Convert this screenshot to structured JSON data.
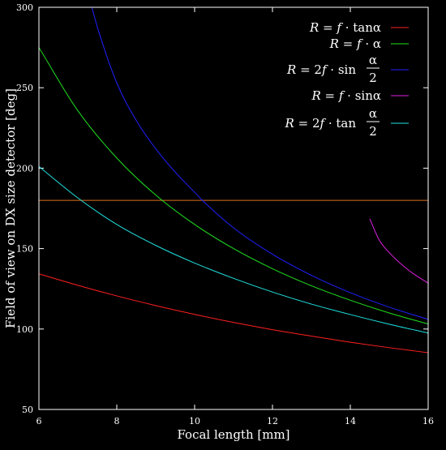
{
  "chart_data": {
    "type": "line",
    "title": "",
    "xlabel": "Focal length [mm]",
    "ylabel": "Field of view on DX size detector [deg]",
    "xlim": [
      6,
      16
    ],
    "ylim": [
      50,
      300
    ],
    "xticks": [
      6,
      8,
      10,
      12,
      14,
      16
    ],
    "yticks": [
      50,
      100,
      150,
      200,
      250,
      300
    ],
    "xtick_labels": [
      "6",
      "8",
      "10",
      "12",
      "14",
      "16"
    ],
    "ytick_labels": [
      "50",
      "100",
      "150",
      "200",
      "250",
      "300"
    ],
    "grid": false,
    "legend_position": "top-right",
    "reference_line": {
      "y": 180,
      "color": "#e07020"
    },
    "series": [
      {
        "name": "R = f · tanα",
        "color": "#ff2020",
        "x": [
          6,
          7,
          8,
          9,
          10,
          11,
          12,
          13,
          14,
          15,
          16
        ],
        "y": [
          134.3,
          127.2,
          120.6,
          114.6,
          109.1,
          104.1,
          99.6,
          95.6,
          91.8,
          88.4,
          85.3
        ]
      },
      {
        "name": "R = f · α",
        "color": "#20e020",
        "x": [
          6,
          7,
          8,
          9,
          10,
          11,
          12,
          13,
          14,
          15,
          16
        ],
        "y": [
          275.0,
          235.7,
          206.3,
          183.3,
          165.0,
          150.0,
          137.5,
          126.9,
          117.9,
          110.0,
          103.1
        ]
      },
      {
        "name": "R = 2f · sin(α/2)",
        "color": "#2020ff",
        "x": [
          7.36,
          7.5,
          8,
          8.5,
          9,
          9.5,
          10,
          10.2,
          11,
          12,
          13,
          14,
          15,
          16
        ],
        "y": [
          300.0,
          287.8,
          253.0,
          229.7,
          212.1,
          197.6,
          185.0,
          180.0,
          162.9,
          146.5,
          133.4,
          122.6,
          113.6,
          106.0
        ]
      },
      {
        "name": "R = f · sinα",
        "color": "#e020e0",
        "x": [
          14.5,
          14.75,
          15,
          15.5,
          16
        ],
        "y": [
          168.5,
          155.0,
          147.5,
          136.5,
          128.5
        ]
      },
      {
        "name": "R = 2f · tan(α/2)",
        "color": "#20e0e0",
        "x": [
          6,
          7,
          8,
          9,
          10,
          11,
          12,
          13,
          14,
          15,
          16
        ],
        "y": [
          201.0,
          181.5,
          165.0,
          152.0,
          141.0,
          131.5,
          123.0,
          115.5,
          109.0,
          103.0,
          97.5
        ]
      }
    ]
  }
}
